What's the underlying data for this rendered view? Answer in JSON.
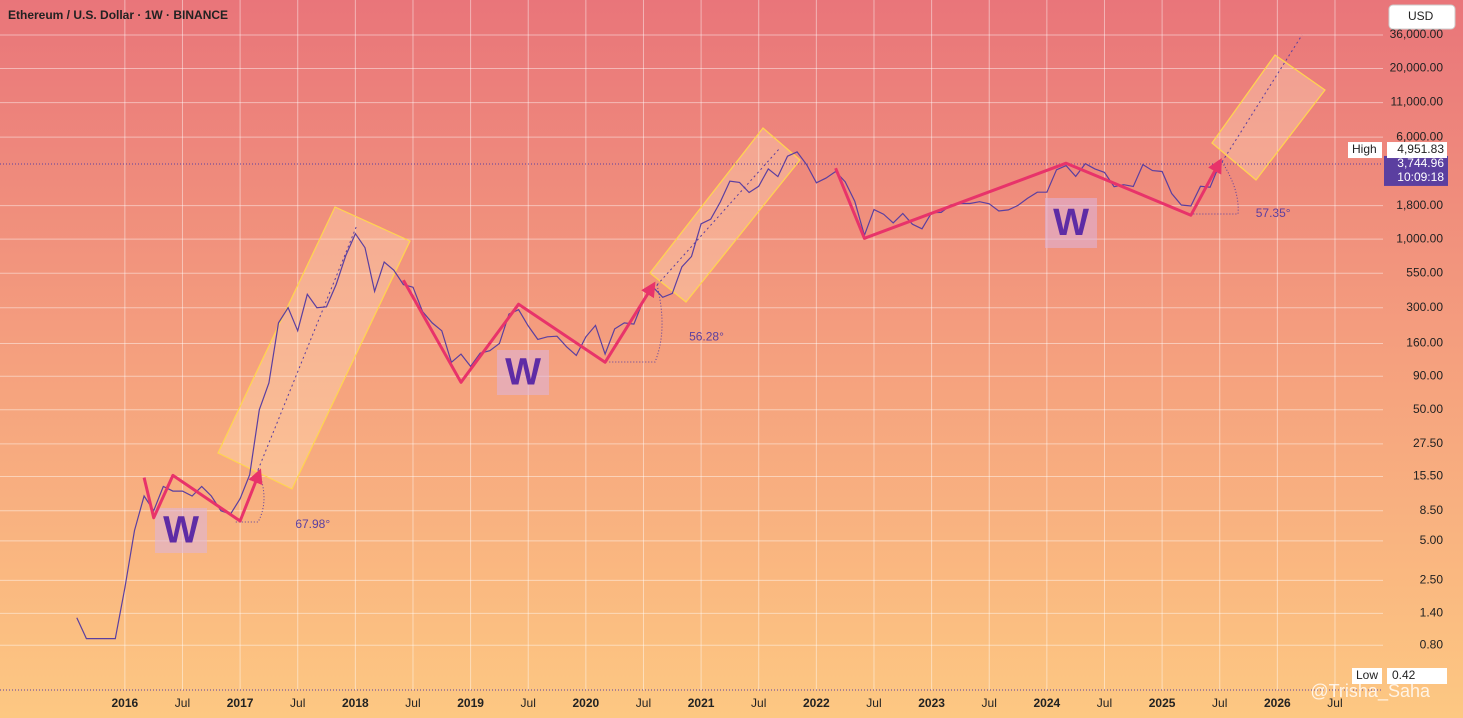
{
  "chart_data": {
    "type": "line",
    "title": "Ethereum / U.S. Dollar · 1W · BINANCE",
    "currency_button": "USD",
    "log_scale": true,
    "grid": true,
    "xlim": [
      "2014-12",
      "2026-12"
    ],
    "ylim": [
      0.365,
      66600
    ],
    "xticks": [
      {
        "value": "2016-01",
        "label": "2016"
      },
      {
        "value": "2016-07",
        "label": "Jul"
      },
      {
        "value": "2017-01",
        "label": "2017"
      },
      {
        "value": "2017-07",
        "label": "Jul"
      },
      {
        "value": "2018-01",
        "label": "2018"
      },
      {
        "value": "2018-07",
        "label": "Jul"
      },
      {
        "value": "2019-01",
        "label": "2019"
      },
      {
        "value": "2019-07",
        "label": "Jul"
      },
      {
        "value": "2020-01",
        "label": "2020"
      },
      {
        "value": "2020-07",
        "label": "Jul"
      },
      {
        "value": "2021-01",
        "label": "2021"
      },
      {
        "value": "2021-07",
        "label": "Jul"
      },
      {
        "value": "2022-01",
        "label": "2022"
      },
      {
        "value": "2022-07",
        "label": "Jul"
      },
      {
        "value": "2023-01",
        "label": "2023"
      },
      {
        "value": "2023-07",
        "label": "Jul"
      },
      {
        "value": "2024-01",
        "label": "2024"
      },
      {
        "value": "2024-07",
        "label": "Jul"
      },
      {
        "value": "2025-01",
        "label": "2025"
      },
      {
        "value": "2025-07",
        "label": "Jul"
      },
      {
        "value": "2026-01",
        "label": "2026"
      },
      {
        "value": "2026-07",
        "label": "Jul"
      }
    ],
    "yticks": [
      {
        "value": 36000,
        "label": "36,000.00"
      },
      {
        "value": 20000,
        "label": "20,000.00"
      },
      {
        "value": 11000,
        "label": "11,000.00"
      },
      {
        "value": 6000,
        "label": "6,000.00"
      },
      {
        "value": 1800,
        "label": "1,800.00"
      },
      {
        "value": 1000,
        "label": "1,000.00"
      },
      {
        "value": 550,
        "label": "550.00"
      },
      {
        "value": 300,
        "label": "300.00"
      },
      {
        "value": 160,
        "label": "160.00"
      },
      {
        "value": 90,
        "label": "90.00"
      },
      {
        "value": 50,
        "label": "50.00"
      },
      {
        "value": 27.5,
        "label": "27.50"
      },
      {
        "value": 15.5,
        "label": "15.50"
      },
      {
        "value": 8.5,
        "label": "8.50"
      },
      {
        "value": 5,
        "label": "5.00"
      },
      {
        "value": 2.5,
        "label": "2.50"
      },
      {
        "value": 1.4,
        "label": "1.40"
      },
      {
        "value": 0.8,
        "label": "0.80"
      }
    ],
    "x": [
      "2015-08",
      "2015-09",
      "2015-10",
      "2015-11",
      "2015-12",
      "2016-01",
      "2016-02",
      "2016-03",
      "2016-04",
      "2016-05",
      "2016-06",
      "2016-07",
      "2016-08",
      "2016-09",
      "2016-10",
      "2016-11",
      "2016-12",
      "2017-01",
      "2017-02",
      "2017-03",
      "2017-04",
      "2017-05",
      "2017-06",
      "2017-07",
      "2017-08",
      "2017-09",
      "2017-10",
      "2017-11",
      "2017-12",
      "2018-01",
      "2018-02",
      "2018-03",
      "2018-04",
      "2018-05",
      "2018-06",
      "2018-07",
      "2018-08",
      "2018-09",
      "2018-10",
      "2018-11",
      "2018-12",
      "2019-01",
      "2019-02",
      "2019-03",
      "2019-04",
      "2019-05",
      "2019-06",
      "2019-07",
      "2019-08",
      "2019-09",
      "2019-10",
      "2019-11",
      "2019-12",
      "2020-01",
      "2020-02",
      "2020-03",
      "2020-04",
      "2020-05",
      "2020-06",
      "2020-07",
      "2020-08",
      "2020-09",
      "2020-10",
      "2020-11",
      "2020-12",
      "2021-01",
      "2021-02",
      "2021-03",
      "2021-04",
      "2021-05",
      "2021-06",
      "2021-07",
      "2021-08",
      "2021-09",
      "2021-10",
      "2021-11",
      "2021-12",
      "2022-01",
      "2022-02",
      "2022-03",
      "2022-04",
      "2022-05",
      "2022-06",
      "2022-07",
      "2022-08",
      "2022-09",
      "2022-10",
      "2022-11",
      "2022-12",
      "2023-01",
      "2023-02",
      "2023-03",
      "2023-04",
      "2023-05",
      "2023-06",
      "2023-07",
      "2023-08",
      "2023-09",
      "2023-10",
      "2023-11",
      "2023-12",
      "2024-01",
      "2024-02",
      "2024-03",
      "2024-04",
      "2024-05",
      "2024-06",
      "2024-07",
      "2024-08",
      "2024-09",
      "2024-10",
      "2024-11",
      "2024-12",
      "2025-01",
      "2025-02",
      "2025-03",
      "2025-04",
      "2025-05",
      "2025-06",
      "2025-07"
    ],
    "series": [
      {
        "name": "ETHUSD",
        "color": "#5b3fa0",
        "values": [
          1.3,
          0.9,
          0.9,
          0.9,
          0.9,
          2.2,
          6,
          11,
          8.5,
          13,
          12,
          12,
          11,
          13,
          11,
          8.5,
          8,
          10.5,
          16,
          50,
          80,
          230,
          300,
          200,
          380,
          300,
          305,
          450,
          750,
          1100,
          860,
          400,
          670,
          580,
          450,
          430,
          280,
          230,
          200,
          115,
          133,
          107,
          135,
          141,
          160,
          268,
          290,
          218,
          172,
          180,
          182,
          151,
          130,
          180,
          220,
          133,
          207,
          230,
          225,
          345,
          430,
          360,
          386,
          615,
          737,
          1310,
          1420,
          1920,
          2770,
          2710,
          2270,
          2530,
          3430,
          3000,
          4290,
          4630,
          3680,
          2690,
          2920,
          3280,
          2730,
          1940,
          1070,
          1680,
          1550,
          1330,
          1570,
          1300,
          1200,
          1590,
          1600,
          1820,
          1870,
          1870,
          1930,
          1860,
          1640,
          1670,
          1810,
          2050,
          2280,
          2280,
          3380,
          3640,
          3010,
          3760,
          3430,
          3230,
          2510,
          2600,
          2520,
          3700,
          3330,
          3280,
          2230,
          1820,
          1790,
          2530,
          2490,
          3744.96
        ]
      }
    ],
    "high_label": "High",
    "high": {
      "value": 4951.83,
      "label": "4,951.83"
    },
    "last": {
      "value": 3744.96,
      "label": "3,744.96"
    },
    "countdown": "10:09:18",
    "low_label": "Low",
    "low": 0.42,
    "patterns": [
      {
        "label": "W",
        "angle": "67.98°",
        "color": "#e8336a",
        "x": [
          "2016-03",
          "2016-04",
          "2016-06",
          "2017-01",
          "2017-03"
        ],
        "values": [
          15.2,
          7.5,
          15.8,
          7.1,
          16.6
        ]
      },
      {
        "label": "W",
        "angle": "56.28°",
        "color": "#e8336a",
        "x": [
          "2018-06",
          "2018-12",
          "2019-06",
          "2020-03",
          "2020-08"
        ],
        "values": [
          486,
          81,
          319,
          115,
          445
        ]
      },
      {
        "label": "W",
        "angle": "57.35°",
        "color": "#e8336a",
        "x": [
          "2022-03",
          "2022-06",
          "2024-03",
          "2025-04",
          "2025-07"
        ],
        "values": [
          3477,
          1015,
          3795,
          1522,
          3880
        ]
      }
    ],
    "watermark": "@Trisha_Saha"
  }
}
